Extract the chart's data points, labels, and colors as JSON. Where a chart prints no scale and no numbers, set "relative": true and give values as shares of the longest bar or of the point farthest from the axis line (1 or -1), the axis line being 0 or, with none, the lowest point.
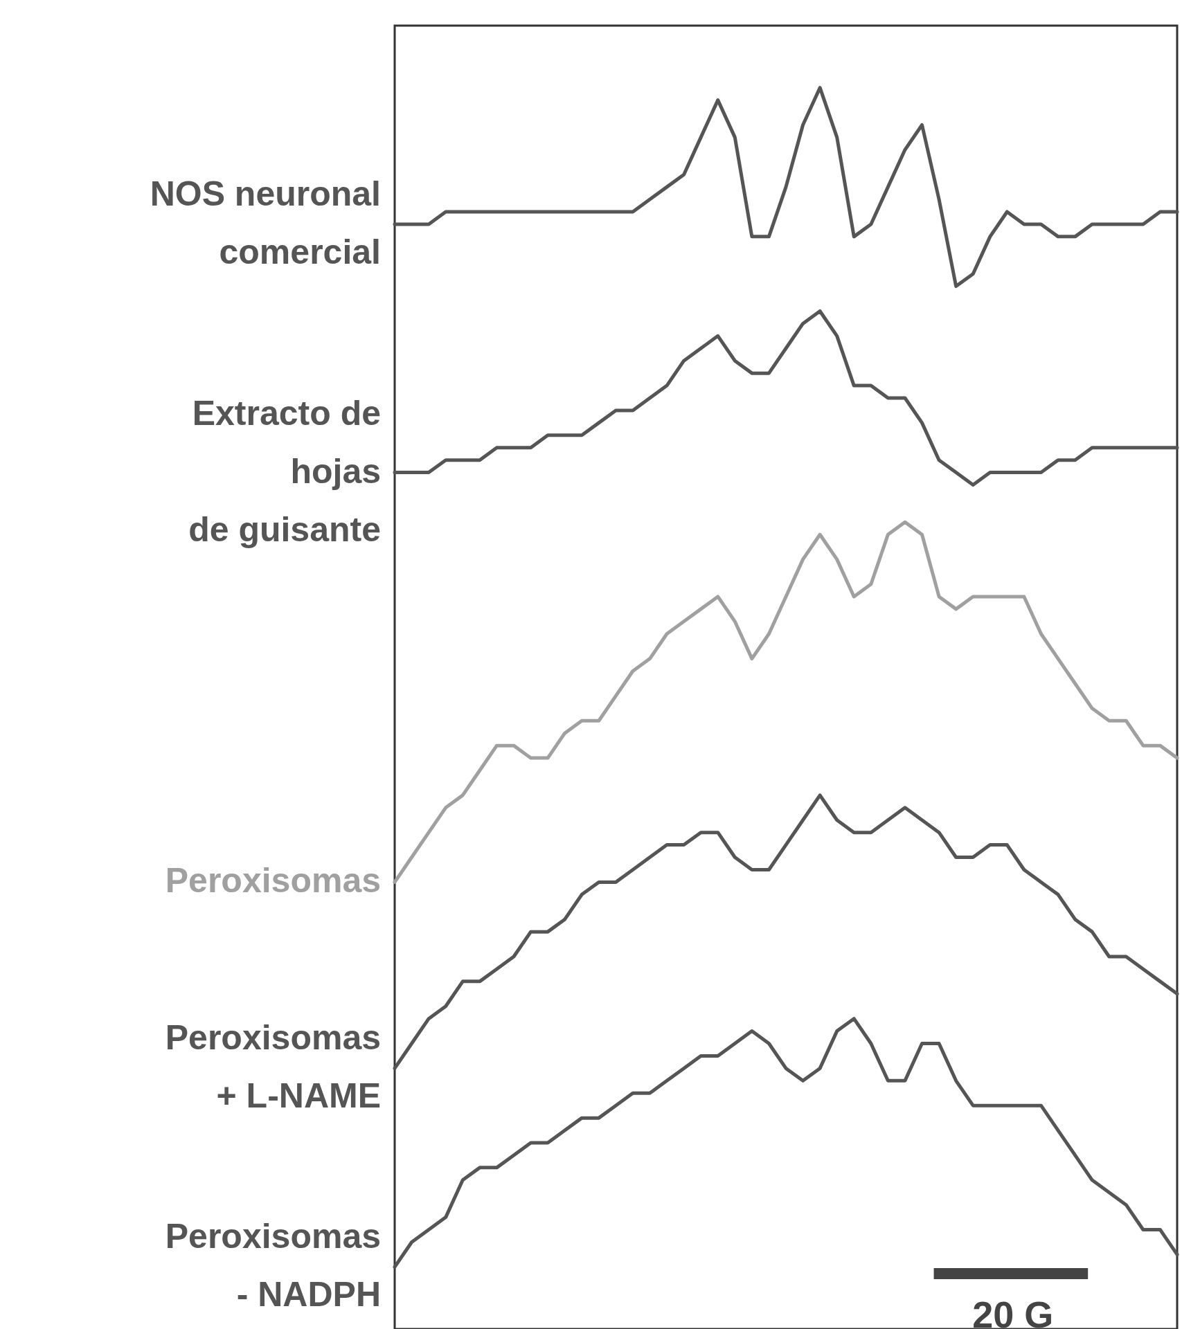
{
  "chart_data": {
    "type": "line",
    "relative": true,
    "categories": [
      null,
      null,
      null,
      null,
      null,
      null,
      null,
      null,
      null,
      null,
      null,
      null,
      null,
      null,
      null,
      null,
      null,
      null,
      null,
      null,
      null,
      null,
      null,
      null,
      null,
      null,
      null,
      null,
      null,
      null,
      null,
      null,
      null,
      null,
      null,
      null,
      null,
      null,
      null,
      null,
      null,
      null,
      null,
      null,
      null,
      null,
      null
    ],
    "series": [
      {
        "name": "NOS neuronal\ncomercial",
        "color": "#555555",
        "values": [
          0.89,
          0.89,
          0.89,
          0.9,
          0.9,
          0.9,
          0.9,
          0.9,
          0.9,
          0.9,
          0.9,
          0.9,
          0.9,
          0.9,
          0.9,
          0.91,
          0.92,
          0.93,
          0.96,
          0.99,
          0.96,
          0.88,
          0.88,
          0.92,
          0.97,
          1.0,
          0.96,
          0.88,
          0.89,
          0.92,
          0.95,
          0.97,
          0.91,
          0.84,
          0.85,
          0.88,
          0.9,
          0.89,
          0.89,
          0.88,
          0.88,
          0.89,
          0.89,
          0.89,
          0.89,
          0.9,
          0.9
        ]
      },
      {
        "name": "Extracto de\nhojas\nde guisante",
        "color": "#555555",
        "values": [
          0.69,
          0.69,
          0.69,
          0.7,
          0.7,
          0.7,
          0.71,
          0.71,
          0.71,
          0.72,
          0.72,
          0.72,
          0.73,
          0.74,
          0.74,
          0.75,
          0.76,
          0.78,
          0.79,
          0.8,
          0.78,
          0.77,
          0.77,
          0.79,
          0.81,
          0.82,
          0.8,
          0.76,
          0.76,
          0.75,
          0.75,
          0.73,
          0.7,
          0.69,
          0.68,
          0.69,
          0.69,
          0.69,
          0.69,
          0.7,
          0.7,
          0.71,
          0.71,
          0.71,
          0.71,
          0.71,
          0.71
        ]
      },
      {
        "name": "Peroxisomas",
        "color": "#a0a0a0",
        "values": [
          0.36,
          0.38,
          0.4,
          0.42,
          0.43,
          0.45,
          0.47,
          0.47,
          0.46,
          0.46,
          0.48,
          0.49,
          0.49,
          0.51,
          0.53,
          0.54,
          0.56,
          0.57,
          0.58,
          0.59,
          0.57,
          0.54,
          0.56,
          0.59,
          0.62,
          0.64,
          0.62,
          0.59,
          0.6,
          0.64,
          0.65,
          0.64,
          0.59,
          0.58,
          0.59,
          0.59,
          0.59,
          0.59,
          0.56,
          0.54,
          0.52,
          0.5,
          0.49,
          0.49,
          0.47,
          0.47,
          0.46
        ]
      },
      {
        "name": "Peroxisomas\n+ L-NAME",
        "color": "#555555",
        "values": [
          0.21,
          0.23,
          0.25,
          0.26,
          0.28,
          0.28,
          0.29,
          0.3,
          0.32,
          0.32,
          0.33,
          0.35,
          0.36,
          0.36,
          0.37,
          0.38,
          0.39,
          0.39,
          0.4,
          0.4,
          0.38,
          0.37,
          0.37,
          0.39,
          0.41,
          0.43,
          0.41,
          0.4,
          0.4,
          0.41,
          0.42,
          0.41,
          0.4,
          0.38,
          0.38,
          0.39,
          0.39,
          0.37,
          0.36,
          0.35,
          0.33,
          0.32,
          0.3,
          0.3,
          0.29,
          0.28,
          0.27
        ]
      },
      {
        "name": "Peroxisomas\n- NADPH",
        "color": "#555555",
        "values": [
          0.05,
          0.07,
          0.08,
          0.09,
          0.12,
          0.13,
          0.13,
          0.14,
          0.15,
          0.15,
          0.16,
          0.17,
          0.17,
          0.18,
          0.19,
          0.19,
          0.2,
          0.21,
          0.22,
          0.22,
          0.23,
          0.24,
          0.23,
          0.21,
          0.2,
          0.21,
          0.24,
          0.25,
          0.23,
          0.2,
          0.2,
          0.23,
          0.23,
          0.2,
          0.18,
          0.18,
          0.18,
          0.18,
          0.18,
          0.16,
          0.14,
          0.12,
          0.11,
          0.1,
          0.08,
          0.08,
          0.06
        ]
      }
    ],
    "annotations": [
      "20 G"
    ]
  }
}
